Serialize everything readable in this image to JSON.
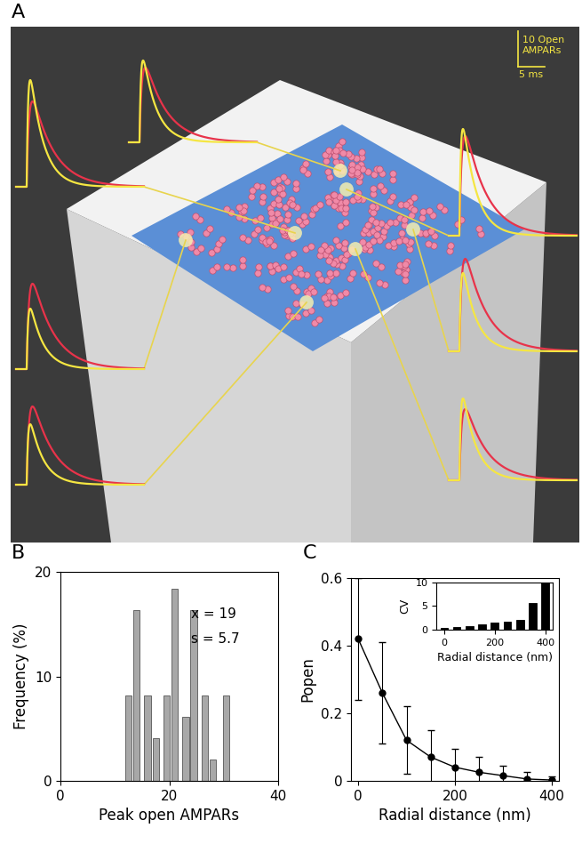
{
  "panel_a": {
    "label": "A",
    "type": "diagram",
    "trace_colors": [
      "#f5e642",
      "#e8334a"
    ],
    "traces": [
      {
        "yellow_peak": 30,
        "red_peak": 24
      },
      {
        "yellow_peak": 23,
        "red_peak": 21
      },
      {
        "yellow_peak": 30,
        "red_peak": 28
      },
      {
        "yellow_peak": 22,
        "red_peak": 26
      },
      {
        "yellow_peak": 17,
        "red_peak": 24
      },
      {
        "yellow_peak": 17,
        "red_peak": 22
      },
      {
        "yellow_peak": 23,
        "red_peak": 20
      }
    ],
    "scale_bar": {
      "y_value": 10,
      "y_label": "10 Open\nAMPARs",
      "x_value": 5,
      "x_label": "5 ms"
    }
  },
  "chart_data": [
    {
      "label": "B",
      "type": "bar",
      "x": [
        12.5,
        14,
        16,
        17.5,
        19.5,
        21,
        23,
        24.5,
        26.5,
        28,
        30.5
      ],
      "values": [
        8.2,
        16.4,
        8.2,
        4.1,
        8.2,
        18.4,
        6.1,
        16.4,
        8.2,
        2,
        8.2
      ],
      "color": "#a8a8a8",
      "xlabel": "Peak open AMPARs",
      "ylabel": "Frequency (%)",
      "xlim": [
        0,
        40
      ],
      "ylim": [
        0,
        20
      ],
      "xticks": [
        0,
        20,
        40
      ],
      "yticks": [
        0,
        10,
        20
      ],
      "annotations": [
        "x = 19",
        "s = 5.7"
      ]
    },
    {
      "label": "C",
      "type": "line",
      "x": [
        0,
        50,
        100,
        150,
        200,
        250,
        300,
        350,
        400
      ],
      "values": [
        0.42,
        0.26,
        0.12,
        0.07,
        0.04,
        0.025,
        0.015,
        0.005,
        0.002
      ],
      "error": [
        0.18,
        0.15,
        0.1,
        0.08,
        0.055,
        0.045,
        0.03,
        0.02,
        0.01
      ],
      "color": "#000000",
      "marker": "o",
      "xlabel": "Radial distance (nm)",
      "ylabel": "Popen",
      "xlim": [
        -15,
        415
      ],
      "ylim": [
        0,
        0.6
      ],
      "xticks": [
        0,
        200,
        400
      ],
      "yticks": [
        0,
        0.2,
        0.4,
        0.6
      ]
    },
    {
      "type": "bar",
      "x": [
        0,
        50,
        100,
        150,
        200,
        250,
        300,
        350,
        400
      ],
      "values": [
        0.4,
        0.6,
        0.8,
        1.1,
        1.5,
        1.7,
        2.1,
        5.7,
        10
      ],
      "color": "#000000",
      "xlabel": "Radial distance (nm)",
      "ylabel": "CV",
      "xlim": [
        -30,
        430
      ],
      "ylim": [
        0,
        10
      ],
      "xticks": [
        0,
        200,
        400
      ],
      "yticks": [
        0,
        5,
        10
      ]
    }
  ]
}
